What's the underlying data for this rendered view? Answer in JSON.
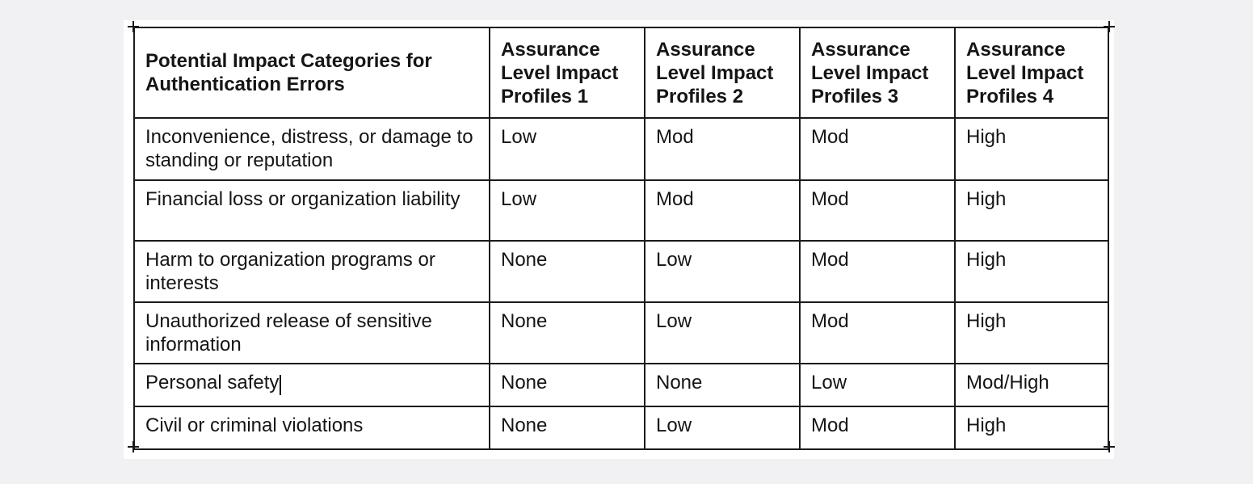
{
  "window": {
    "background_color": "#f1f1f3",
    "page_background_color": "#ffffff"
  },
  "table": {
    "header": {
      "category_column": "Potential Impact Categories for Authentication Errors",
      "profile_columns": [
        "Assurance Level Impact Profiles 1",
        "Assurance Level Impact Profiles 2",
        "Assurance Level Impact Profiles 3",
        "Assurance Level Impact Profiles 4"
      ]
    },
    "rows": [
      {
        "category": "Inconvenience, distress, or damage to standing or reputation",
        "values": [
          "Low",
          "Mod",
          "Mod",
          "High"
        ]
      },
      {
        "category": "Financial loss or organization liability",
        "values": [
          "Low",
          "Mod",
          "Mod",
          "High"
        ]
      },
      {
        "category": "Harm to organization programs or interests",
        "values": [
          "None",
          "Low",
          "Mod",
          "High"
        ]
      },
      {
        "category": "Unauthorized release of sensitive information",
        "values": [
          "None",
          "Low",
          "Mod",
          "High"
        ]
      },
      {
        "category": "Personal safety",
        "values": [
          "None",
          "None",
          "Low",
          "Mod/High"
        ],
        "has_text_caret": true
      },
      {
        "category": "Civil or criminal violations",
        "values": [
          "None",
          "Low",
          "Mod",
          "High"
        ]
      }
    ]
  }
}
